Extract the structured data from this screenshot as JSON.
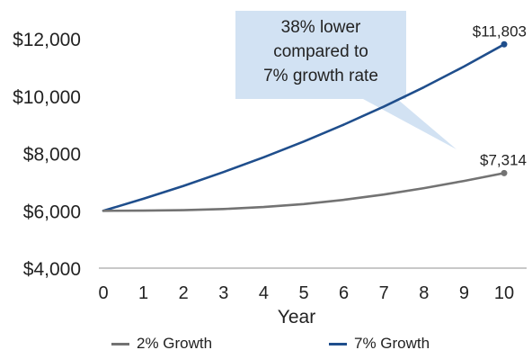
{
  "chart_data": {
    "type": "line",
    "x": [
      0,
      1,
      2,
      3,
      4,
      5,
      6,
      7,
      8,
      9,
      10
    ],
    "xlabel": "Year",
    "ylabel": "",
    "ylim": [
      4000,
      12000
    ],
    "xlim": [
      0,
      10
    ],
    "y_ticks": [
      "$4,000",
      "$6,000",
      "$8,000",
      "$10,000",
      "$12,000"
    ],
    "y_tick_values": [
      4000,
      6000,
      8000,
      10000,
      12000
    ],
    "series": [
      {
        "name": "2% Growth",
        "color": "#737373",
        "values": [
          6000,
          6005,
          6020,
          6060,
          6130,
          6235,
          6380,
          6565,
          6790,
          7040,
          7314
        ],
        "end_label": "$7,314"
      },
      {
        "name": "7% Growth",
        "color": "#1f4e8c",
        "values": [
          6000,
          6420,
          6869,
          7350,
          7865,
          8415,
          9005,
          9635,
          10310,
          11030,
          11803
        ],
        "end_label": "$11,803"
      }
    ],
    "annotation": {
      "line1": "38% lower",
      "line2": "compared to",
      "line3": "7% growth rate",
      "box_color": "#d2e2f3"
    },
    "grid": false,
    "legend_position": "bottom"
  }
}
